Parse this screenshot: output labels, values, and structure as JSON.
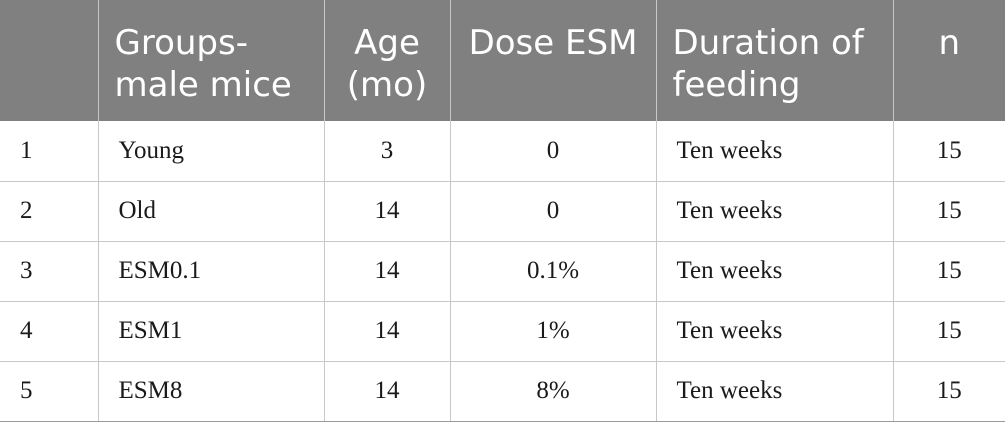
{
  "table": {
    "headers": [
      "",
      "Groups-male mice",
      "Age (mo)",
      "Dose ESM",
      "Duration of feeding",
      "n"
    ],
    "rows": [
      [
        "1",
        "Young",
        "3",
        "0",
        "Ten weeks",
        "15"
      ],
      [
        "2",
        "Old",
        "14",
        "0",
        "Ten weeks",
        "15"
      ],
      [
        "3",
        "ESM0.1",
        "14",
        "0.1%",
        "Ten weeks",
        "15"
      ],
      [
        "4",
        "ESM1",
        "14",
        "1%",
        "Ten weeks",
        "15"
      ],
      [
        "5",
        "ESM8",
        "14",
        "8%",
        "Ten weeks",
        "15"
      ]
    ]
  },
  "colors": {
    "header_background": "#808080",
    "header_text": "#ffffff",
    "grid_line": "#c8c8c8"
  }
}
